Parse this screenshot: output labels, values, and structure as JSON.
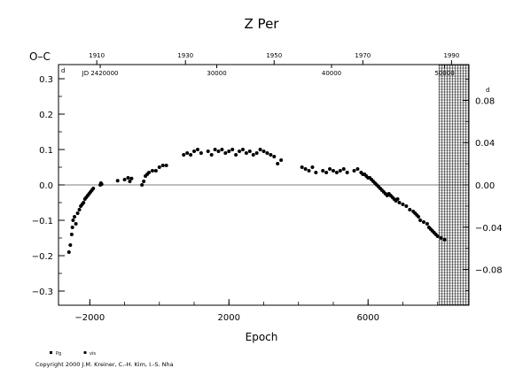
{
  "chart_data": {
    "type": "scatter",
    "title": "Z  Per",
    "ylabel": "O–C",
    "xlabel": "Epoch",
    "ylabel_right_unit": "d",
    "xlim": [
      -2900,
      8900
    ],
    "ylim": [
      -0.34,
      0.34
    ],
    "y2lim": [
      -0.1139,
      0.1139
    ],
    "grid": false,
    "zero_line": true,
    "x_ticks": [
      -2000,
      2000,
      6000
    ],
    "x_tick_labels": [
      "−2000",
      "2000",
      "6000"
    ],
    "y_ticks": [
      0.3,
      0.2,
      0.1,
      0.0,
      -0.1,
      -0.2,
      -0.3
    ],
    "y_tick_labels": [
      "0.3",
      "0.2",
      "0.1",
      "0.0",
      "−0.1",
      "−0.2",
      "−0.3"
    ],
    "y2_ticks": [
      0.08,
      0.04,
      0.0,
      -0.04,
      -0.08
    ],
    "y2_tick_labels": [
      "0.08",
      "0.04",
      "0.00",
      "−0.04",
      "−0.08"
    ],
    "top_year_ticks": [
      {
        "label": "1910",
        "epoch": -1800
      },
      {
        "label": "1930",
        "epoch": 750
      },
      {
        "label": "1950",
        "epoch": 3300
      },
      {
        "label": "1970",
        "epoch": 5850
      },
      {
        "label": "1990",
        "epoch": 8400
      }
    ],
    "top_jd_ticks": [
      {
        "label": "JD 2420000",
        "epoch": -1700
      },
      {
        "label": "30000",
        "epoch": 1650
      },
      {
        "label": "40000",
        "epoch": 4950
      },
      {
        "label": "50000",
        "epoch": 8200
      }
    ],
    "hatched_region": {
      "x_start": 8020,
      "x_end": 8900
    },
    "legend": [
      {
        "label": "Pg",
        "marker": "square"
      },
      {
        "label": "vis",
        "marker": "circle"
      }
    ],
    "series": [
      {
        "name": "vis",
        "points": [
          [
            -2600,
            -0.19
          ],
          [
            -2560,
            -0.17
          ],
          [
            -2520,
            -0.14
          ],
          [
            -2500,
            -0.12
          ],
          [
            -2480,
            -0.1
          ],
          [
            -2440,
            -0.09
          ],
          [
            -2400,
            -0.11
          ],
          [
            -2350,
            -0.08
          ],
          [
            -2300,
            -0.07
          ],
          [
            -2260,
            -0.06
          ],
          [
            -2220,
            -0.055
          ],
          [
            -2180,
            -0.05
          ],
          [
            -2140,
            -0.04
          ],
          [
            -2100,
            -0.035
          ],
          [
            -2060,
            -0.03
          ],
          [
            -2020,
            -0.025
          ],
          [
            -1980,
            -0.02
          ],
          [
            -1940,
            -0.015
          ],
          [
            -1900,
            -0.01
          ],
          [
            -1700,
            0.0
          ],
          [
            -1680,
            0.005
          ],
          [
            -1660,
            0.002
          ],
          [
            -1200,
            0.012
          ],
          [
            -1000,
            0.015
          ],
          [
            -900,
            0.02
          ],
          [
            -850,
            0.01
          ],
          [
            -800,
            0.018
          ],
          [
            -500,
            0.0
          ],
          [
            -450,
            0.01
          ],
          [
            -400,
            0.025
          ],
          [
            -350,
            0.03
          ],
          [
            -300,
            0.035
          ],
          [
            -200,
            0.04
          ],
          [
            -100,
            0.04
          ],
          [
            0,
            0.05
          ],
          [
            100,
            0.055
          ],
          [
            200,
            0.055
          ],
          [
            700,
            0.085
          ],
          [
            800,
            0.09
          ],
          [
            900,
            0.085
          ],
          [
            1000,
            0.095
          ],
          [
            1100,
            0.1
          ],
          [
            1200,
            0.09
          ],
          [
            1400,
            0.095
          ],
          [
            1500,
            0.085
          ],
          [
            1600,
            0.1
          ],
          [
            1700,
            0.095
          ],
          [
            1800,
            0.1
          ],
          [
            1900,
            0.09
          ],
          [
            2000,
            0.095
          ],
          [
            2100,
            0.1
          ],
          [
            2200,
            0.085
          ],
          [
            2300,
            0.095
          ],
          [
            2400,
            0.1
          ],
          [
            2500,
            0.09
          ],
          [
            2600,
            0.095
          ],
          [
            2700,
            0.085
          ],
          [
            2800,
            0.09
          ],
          [
            2900,
            0.1
          ],
          [
            3000,
            0.095
          ],
          [
            3100,
            0.09
          ],
          [
            3200,
            0.085
          ],
          [
            3300,
            0.08
          ],
          [
            3400,
            0.06
          ],
          [
            3500,
            0.07
          ],
          [
            4100,
            0.05
          ],
          [
            4200,
            0.045
          ],
          [
            4300,
            0.04
          ],
          [
            4400,
            0.05
          ],
          [
            4500,
            0.035
          ],
          [
            4700,
            0.04
          ],
          [
            4800,
            0.035
          ],
          [
            4900,
            0.045
          ],
          [
            5000,
            0.04
          ],
          [
            5100,
            0.035
          ],
          [
            5200,
            0.04
          ],
          [
            5300,
            0.045
          ],
          [
            5400,
            0.035
          ],
          [
            5600,
            0.04
          ],
          [
            5700,
            0.045
          ],
          [
            5800,
            0.035
          ],
          [
            5850,
            0.03
          ],
          [
            5900,
            0.03
          ],
          [
            5950,
            0.025
          ],
          [
            6000,
            0.02
          ],
          [
            6050,
            0.02
          ],
          [
            6100,
            0.015
          ],
          [
            6150,
            0.01
          ],
          [
            6200,
            0.005
          ],
          [
            6250,
            0.0
          ],
          [
            6300,
            -0.005
          ],
          [
            6350,
            -0.01
          ],
          [
            6400,
            -0.015
          ],
          [
            6450,
            -0.02
          ],
          [
            6500,
            -0.025
          ],
          [
            6550,
            -0.03
          ],
          [
            6600,
            -0.025
          ],
          [
            6650,
            -0.03
          ],
          [
            6700,
            -0.035
          ],
          [
            6750,
            -0.04
          ],
          [
            6800,
            -0.045
          ],
          [
            6850,
            -0.04
          ],
          [
            6900,
            -0.05
          ],
          [
            7000,
            -0.055
          ],
          [
            7100,
            -0.06
          ],
          [
            7200,
            -0.07
          ],
          [
            7300,
            -0.075
          ],
          [
            7350,
            -0.08
          ],
          [
            7400,
            -0.085
          ],
          [
            7450,
            -0.09
          ],
          [
            7500,
            -0.1
          ],
          [
            7600,
            -0.105
          ],
          [
            7700,
            -0.11
          ],
          [
            7750,
            -0.12
          ],
          [
            7800,
            -0.125
          ],
          [
            7850,
            -0.13
          ],
          [
            7900,
            -0.135
          ],
          [
            7950,
            -0.14
          ],
          [
            8000,
            -0.145
          ],
          [
            8100,
            -0.15
          ],
          [
            8200,
            -0.155
          ]
        ]
      }
    ]
  },
  "copyright": "Copyright 2000 J.M. Kreiner, C.-H. Kim, I.-S. Nha"
}
